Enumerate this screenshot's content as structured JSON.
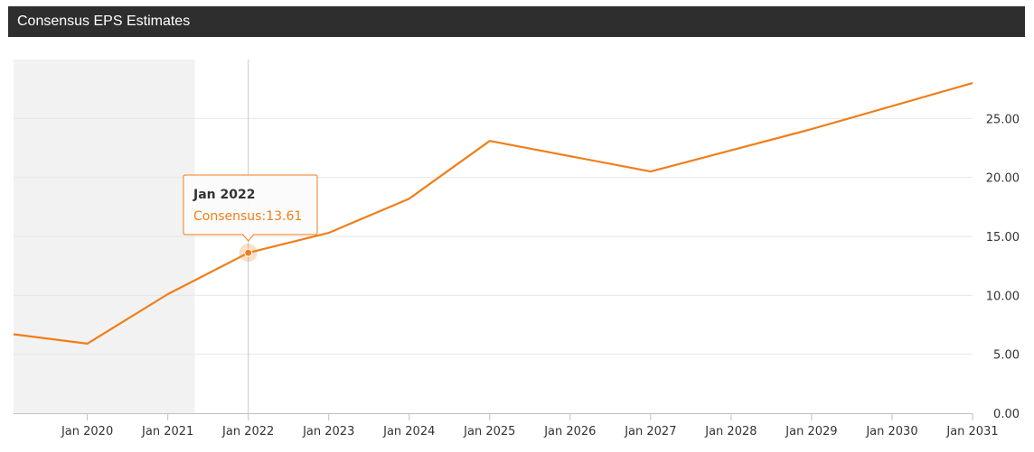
{
  "header": {
    "title": "Consensus EPS Estimates"
  },
  "colors": {
    "series": "#f07e1a",
    "header_bg": "#2e2e2e",
    "shaded_region": "#f2f2f2",
    "grid": "#e6e6e6"
  },
  "tooltip": {
    "title": "Jan 2022",
    "series_label": "Consensus",
    "value": "13.61"
  },
  "chart_data": {
    "type": "line",
    "title": "Consensus EPS Estimates",
    "xlabel": "",
    "ylabel": "",
    "x_range": [
      "2019-02",
      "2031-01"
    ],
    "ylim": [
      0,
      30
    ],
    "y_axis_position": "right",
    "grid": "horizontal",
    "shaded_range": [
      "2019-02",
      "2021-05"
    ],
    "crosshair_x": "2022-01",
    "highlight": {
      "x": "2022-01",
      "y": 13.61
    },
    "x_ticks": [
      {
        "date": "2020-01",
        "label": "Jan 2020"
      },
      {
        "date": "2021-01",
        "label": "Jan 2021"
      },
      {
        "date": "2022-01",
        "label": "Jan 2022"
      },
      {
        "date": "2023-01",
        "label": "Jan 2023"
      },
      {
        "date": "2024-01",
        "label": "Jan 2024"
      },
      {
        "date": "2025-01",
        "label": "Jan 2025"
      },
      {
        "date": "2026-01",
        "label": "Jan 2026"
      },
      {
        "date": "2027-01",
        "label": "Jan 2027"
      },
      {
        "date": "2028-01",
        "label": "Jan 2028"
      },
      {
        "date": "2029-01",
        "label": "Jan 2029"
      },
      {
        "date": "2030-01",
        "label": "Jan 2030"
      },
      {
        "date": "2031-01",
        "label": "Jan 2031"
      }
    ],
    "y_ticks": [
      {
        "value": 0,
        "label": "0.00"
      },
      {
        "value": 5,
        "label": "5.00"
      },
      {
        "value": 10,
        "label": "10.00"
      },
      {
        "value": 15,
        "label": "15.00"
      },
      {
        "value": 20,
        "label": "20.00"
      },
      {
        "value": 25,
        "label": "25.00"
      }
    ],
    "series": [
      {
        "points": [
          {
            "x": "2019-02",
            "y": 6.7
          },
          {
            "x": "2020-01",
            "y": 5.9
          },
          {
            "x": "2021-01",
            "y": 10.1
          },
          {
            "x": "2022-01",
            "y": 13.61
          },
          {
            "x": "2023-01",
            "y": 15.3
          },
          {
            "x": "2024-01",
            "y": 18.2
          },
          {
            "x": "2025-01",
            "y": 23.1
          },
          {
            "x": "2027-01",
            "y": 20.5
          },
          {
            "x": "2029-01",
            "y": 24.1
          },
          {
            "x": "2031-01",
            "y": 28.0
          }
        ]
      }
    ]
  }
}
